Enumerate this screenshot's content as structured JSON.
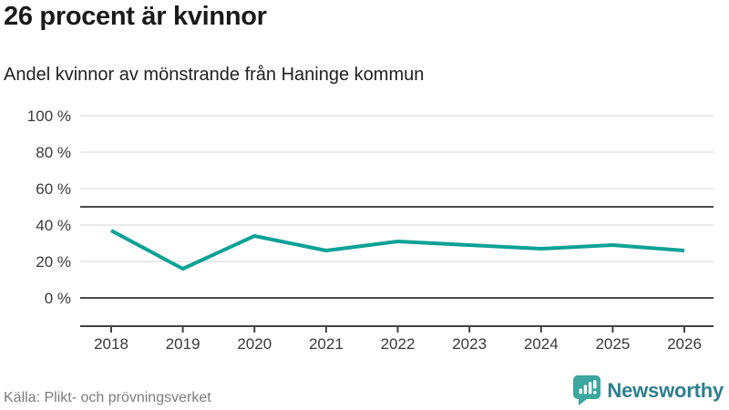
{
  "header": {
    "title": "26 procent är kvinnor",
    "subtitle": "Andel kvinnor av mönstrande från Haninge kommun"
  },
  "chart_data": {
    "type": "line",
    "title": "26 procent är kvinnor",
    "subtitle": "Andel kvinnor av mönstrande från Haninge kommun",
    "x": [
      2018,
      2019,
      2020,
      2021,
      2022,
      2023,
      2024,
      2025,
      2026
    ],
    "series": [
      {
        "name": "Andel kvinnor av mönstrande",
        "values": [
          37,
          16,
          34,
          26,
          31,
          29,
          27,
          29,
          26
        ]
      }
    ],
    "xlabel": "",
    "ylabel": "",
    "ylim": [
      0,
      100
    ],
    "yticks": [
      0,
      20,
      40,
      60,
      80,
      100
    ],
    "ytick_suffix": " %",
    "emphasis_gridlines": [
      0,
      50
    ],
    "grid": true,
    "legend": "none",
    "line_color": "#0ca296"
  },
  "footer": {
    "source": "Källa: Plikt- och prövningsverket",
    "logo_text": "Newsworthy"
  },
  "colors": {
    "accent": "#0ca296",
    "grid_light": "#e3e3e3",
    "grid_dark": "#4a4a4a",
    "axis": "#424242",
    "tick_label": "#3a3a3a",
    "logo_icon": "#3ba79e",
    "logo_text": "#2d7f8c"
  }
}
